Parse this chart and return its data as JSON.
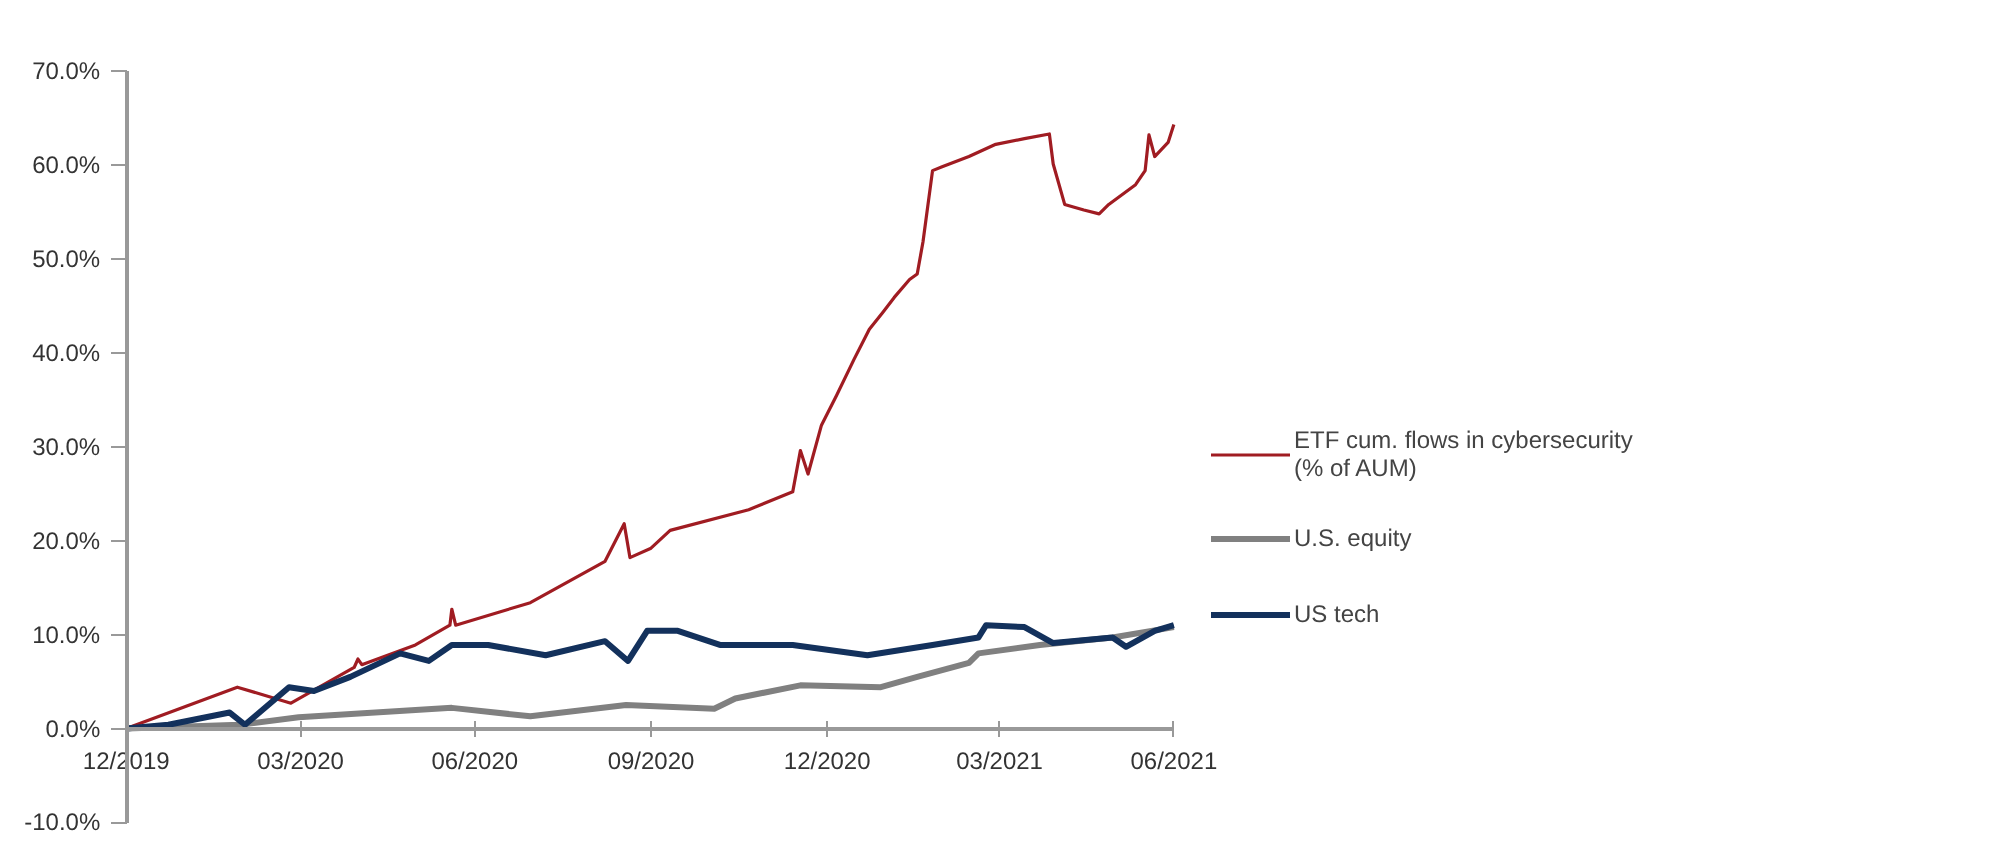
{
  "chart_data": {
    "type": "line",
    "x": [
      "2019-12-31",
      "2020-02-27",
      "2020-03-26",
      "2020-04-28",
      "2020-04-30",
      "2020-05-02",
      "2020-05-30",
      "2020-06-17",
      "2020-06-18",
      "2020-06-20",
      "2020-07-29",
      "2020-09-06",
      "2020-09-16",
      "2020-09-19",
      "2020-09-30",
      "2020-10-10",
      "2020-11-20",
      "2020-12-13",
      "2020-12-17",
      "2020-12-21",
      "2020-12-28",
      "2021-01-05",
      "2021-01-14",
      "2021-01-22",
      "2021-01-29",
      "2021-02-04",
      "2021-02-12",
      "2021-02-16",
      "2021-02-19",
      "2021-02-24",
      "2021-03-01",
      "2021-03-15",
      "2021-03-29",
      "2021-04-13",
      "2021-04-26",
      "2021-04-28",
      "2021-05-04",
      "2021-05-14",
      "2021-05-22",
      "2021-05-27",
      "2021-06-10",
      "2021-06-15",
      "2021-06-17",
      "2021-06-20",
      "2021-06-27",
      "2021-06-30"
    ],
    "series": [
      {
        "name": "ETF cum. flows in cybersecurity\n(% of AUM)",
        "color": "#a01c22",
        "values": [
          0,
          4.4,
          2.7,
          6.5,
          7.4,
          6.8,
          8.9,
          11.0,
          12.7,
          11.0,
          13.4,
          17.8,
          21.8,
          18.2,
          19.2,
          21.1,
          23.3,
          25.2,
          29.6,
          27.1,
          32.3,
          35.5,
          39.3,
          42.5,
          44.3,
          45.9,
          47.8,
          48.4,
          51.8,
          59.4,
          59.8,
          60.9,
          62.2,
          62.8,
          63.3,
          60.1,
          55.8,
          55.2,
          54.8,
          55.8,
          57.9,
          59.4,
          63.2,
          60.9,
          62.4,
          64.3
        ]
      },
      {
        "name": "U.S. equity",
        "color": "#808080",
        "x": [
          "2019-12-31",
          "2020-02-28",
          "2020-03-30",
          "2020-06-18",
          "2020-07-29",
          "2020-09-17",
          "2020-11-02",
          "2020-11-13",
          "2020-12-17",
          "2021-01-28",
          "2021-02-16",
          "2021-03-15",
          "2021-03-20",
          "2021-04-21",
          "2021-05-29",
          "2021-06-30"
        ],
        "values": [
          0,
          0.4,
          1.2,
          2.2,
          1.3,
          2.5,
          2.1,
          3.2,
          4.6,
          4.4,
          5.5,
          7.0,
          8.0,
          8.9,
          9.7,
          10.8
        ]
      },
      {
        "name": "US tech",
        "color": "#13315c",
        "x": [
          "2019-12-31",
          "2020-01-22",
          "2020-02-23",
          "2020-03-02",
          "2020-03-25",
          "2020-04-07",
          "2020-04-26",
          "2020-05-22",
          "2020-06-06",
          "2020-06-18",
          "2020-07-07",
          "2020-08-06",
          "2020-09-06",
          "2020-09-18",
          "2020-09-28",
          "2020-10-14",
          "2020-11-05",
          "2020-12-13",
          "2021-01-21",
          "2021-02-24",
          "2021-03-20",
          "2021-03-24",
          "2021-04-13",
          "2021-04-28",
          "2021-05-29",
          "2021-06-05",
          "2021-06-20",
          "2021-06-30"
        ],
        "values": [
          0,
          0.4,
          1.7,
          0.4,
          4.4,
          4.0,
          5.5,
          8.0,
          7.2,
          8.9,
          8.9,
          7.8,
          9.3,
          7.2,
          10.4,
          10.4,
          8.9,
          8.9,
          7.8,
          8.9,
          9.7,
          11.0,
          10.8,
          9.1,
          9.7,
          8.7,
          10.4,
          11.0
        ]
      }
    ],
    "xlim": [
      "2019-12-31",
      "2021-06-30"
    ],
    "xticks": [
      {
        "value": "2019-12-31",
        "label": "12/2019"
      },
      {
        "value": "2020-03-31",
        "label": "03/2020"
      },
      {
        "value": "2020-06-30",
        "label": "06/2020"
      },
      {
        "value": "2020-09-30",
        "label": "09/2020"
      },
      {
        "value": "2020-12-31",
        "label": "12/2020"
      },
      {
        "value": "2021-03-31",
        "label": "03/2021"
      },
      {
        "value": "2021-06-30",
        "label": "06/2021"
      }
    ],
    "ylim": [
      -10,
      70
    ],
    "yticks": [
      {
        "value": -10,
        "label": "-10.0%"
      },
      {
        "value": 0,
        "label": "0.0%"
      },
      {
        "value": 10,
        "label": "10.0%"
      },
      {
        "value": 20,
        "label": "20.0%"
      },
      {
        "value": 30,
        "label": "30.0%"
      },
      {
        "value": 40,
        "label": "40.0%"
      },
      {
        "value": 50,
        "label": "50.0%"
      },
      {
        "value": 60,
        "label": "60.0%"
      },
      {
        "value": 70,
        "label": "70.0%"
      }
    ],
    "grid": false,
    "legend": "right",
    "marker": "none",
    "line_style": "solid"
  }
}
